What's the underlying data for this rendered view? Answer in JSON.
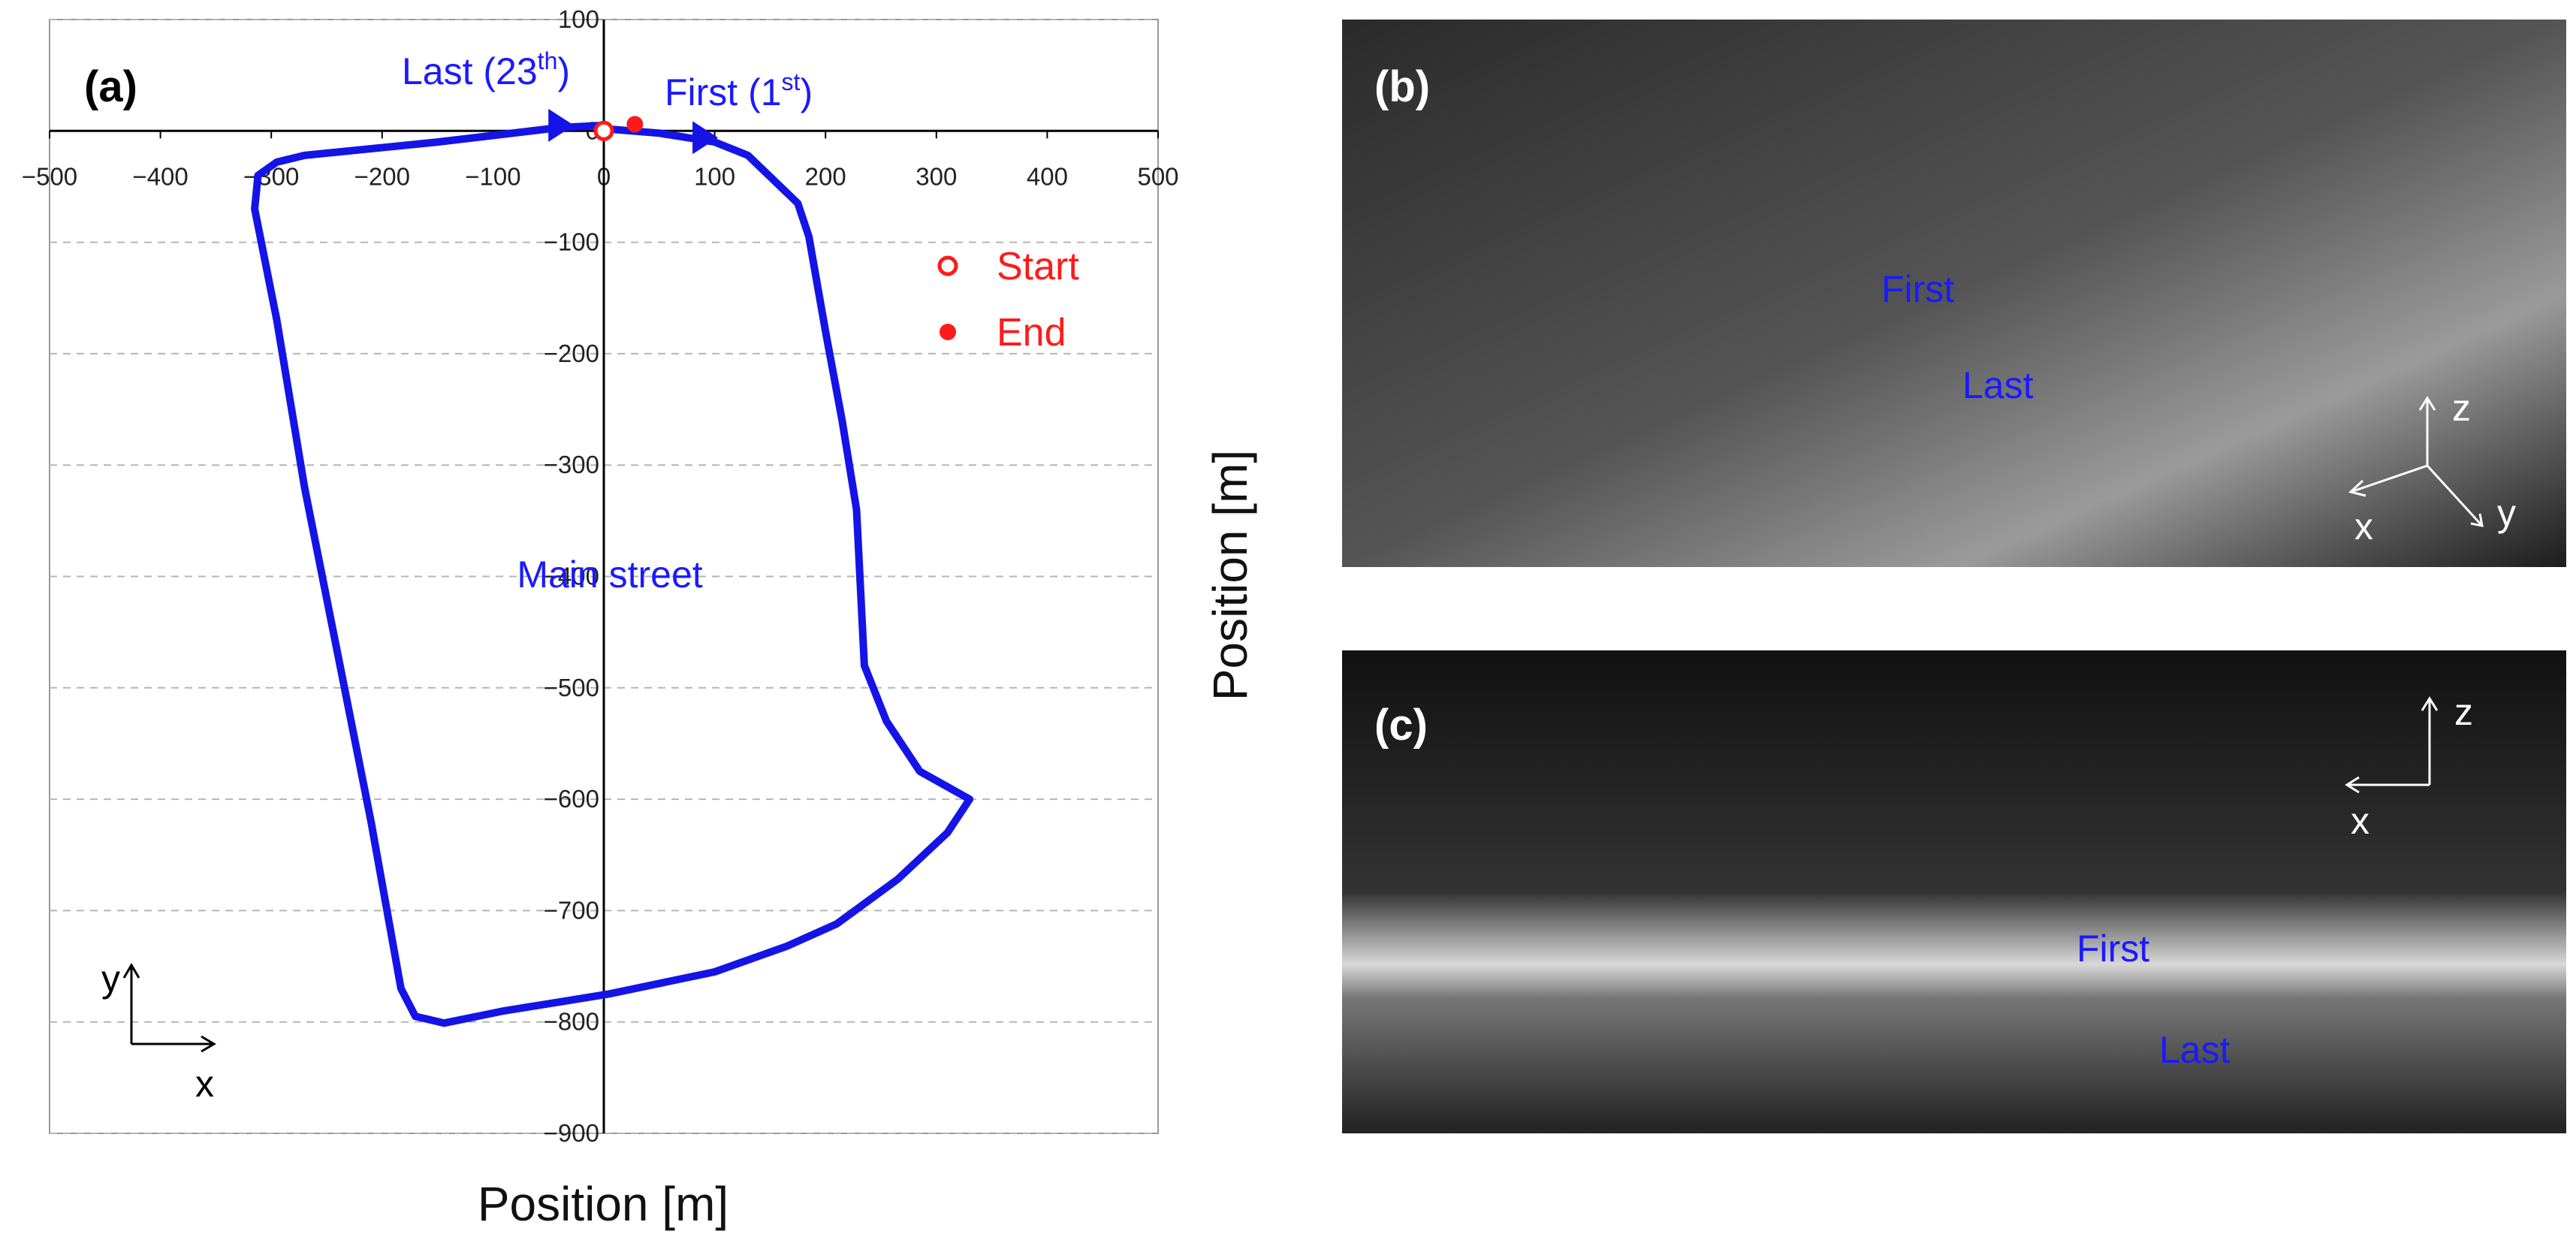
{
  "chart_data": {
    "type": "line",
    "panel_label": "(a)",
    "x_label": "Position [m]",
    "y_label": "Position [m]",
    "xlim": [
      -500,
      500
    ],
    "ylim": [
      -900,
      100
    ],
    "xticks": [
      {
        "value": -500,
        "label": "−500"
      },
      {
        "value": -400,
        "label": "−400"
      },
      {
        "value": -300,
        "label": "−300"
      },
      {
        "value": -200,
        "label": "−200"
      },
      {
        "value": -100,
        "label": "−100"
      },
      0,
      100,
      200,
      300,
      400,
      500
    ],
    "yticks": [
      {
        "value": -900,
        "label": "−900"
      },
      {
        "value": -800,
        "label": "−800"
      },
      {
        "value": -700,
        "label": "−700"
      },
      {
        "value": -600,
        "label": "−600"
      },
      {
        "value": -500,
        "label": "−500"
      },
      {
        "value": -400,
        "label": "−400"
      },
      {
        "value": -300,
        "label": "−300"
      },
      {
        "value": -200,
        "label": "−200"
      },
      {
        "value": -100,
        "label": "−100"
      },
      0,
      100
    ],
    "grid": true,
    "series": [
      {
        "color": "#1414e6",
        "x": [
          0,
          50,
          100,
          130,
          175,
          185,
          200,
          215,
          228,
          235,
          255,
          285,
          330,
          310,
          265,
          210,
          165,
          100,
          4,
          -90,
          -144,
          -170,
          -183,
          -210,
          -240,
          -270,
          -295,
          -315,
          -312,
          -295,
          -270,
          -150,
          -40,
          0
        ],
        "y": [
          2,
          -2,
          -10,
          -22,
          -65,
          -95,
          -180,
          -260,
          -340,
          -480,
          -530,
          -575,
          -600,
          -630,
          -672,
          -712,
          -732,
          -755,
          -775,
          -790,
          -801,
          -795,
          -770,
          -620,
          -470,
          -320,
          -170,
          -70,
          -40,
          -28,
          -22,
          -10,
          3,
          5
        ]
      }
    ],
    "points": [
      {
        "name": "Start",
        "x": 0,
        "y": 0,
        "color": "#ff1a1a",
        "filled": false
      },
      {
        "name": "End",
        "x": 28,
        "y": 6,
        "color": "#ff1a1a",
        "filled": true
      }
    ],
    "legend": "upper right",
    "annotations": {
      "last": {
        "text": "Last (23",
        "sup": "th",
        "close": ")"
      },
      "first": {
        "text": "First (1",
        "sup": "st",
        "close": ")"
      },
      "street": "Main street"
    },
    "axis_icon": {
      "up": "y",
      "right": "x"
    }
  },
  "panels": [
    {
      "label": "(b)",
      "first": "First",
      "last": "Last",
      "axes": {
        "up": "z",
        "left": "x",
        "diag": "y"
      }
    },
    {
      "label": "(c)",
      "first": "First",
      "last": "Last",
      "axes": {
        "up": "z",
        "left": "x"
      }
    }
  ]
}
